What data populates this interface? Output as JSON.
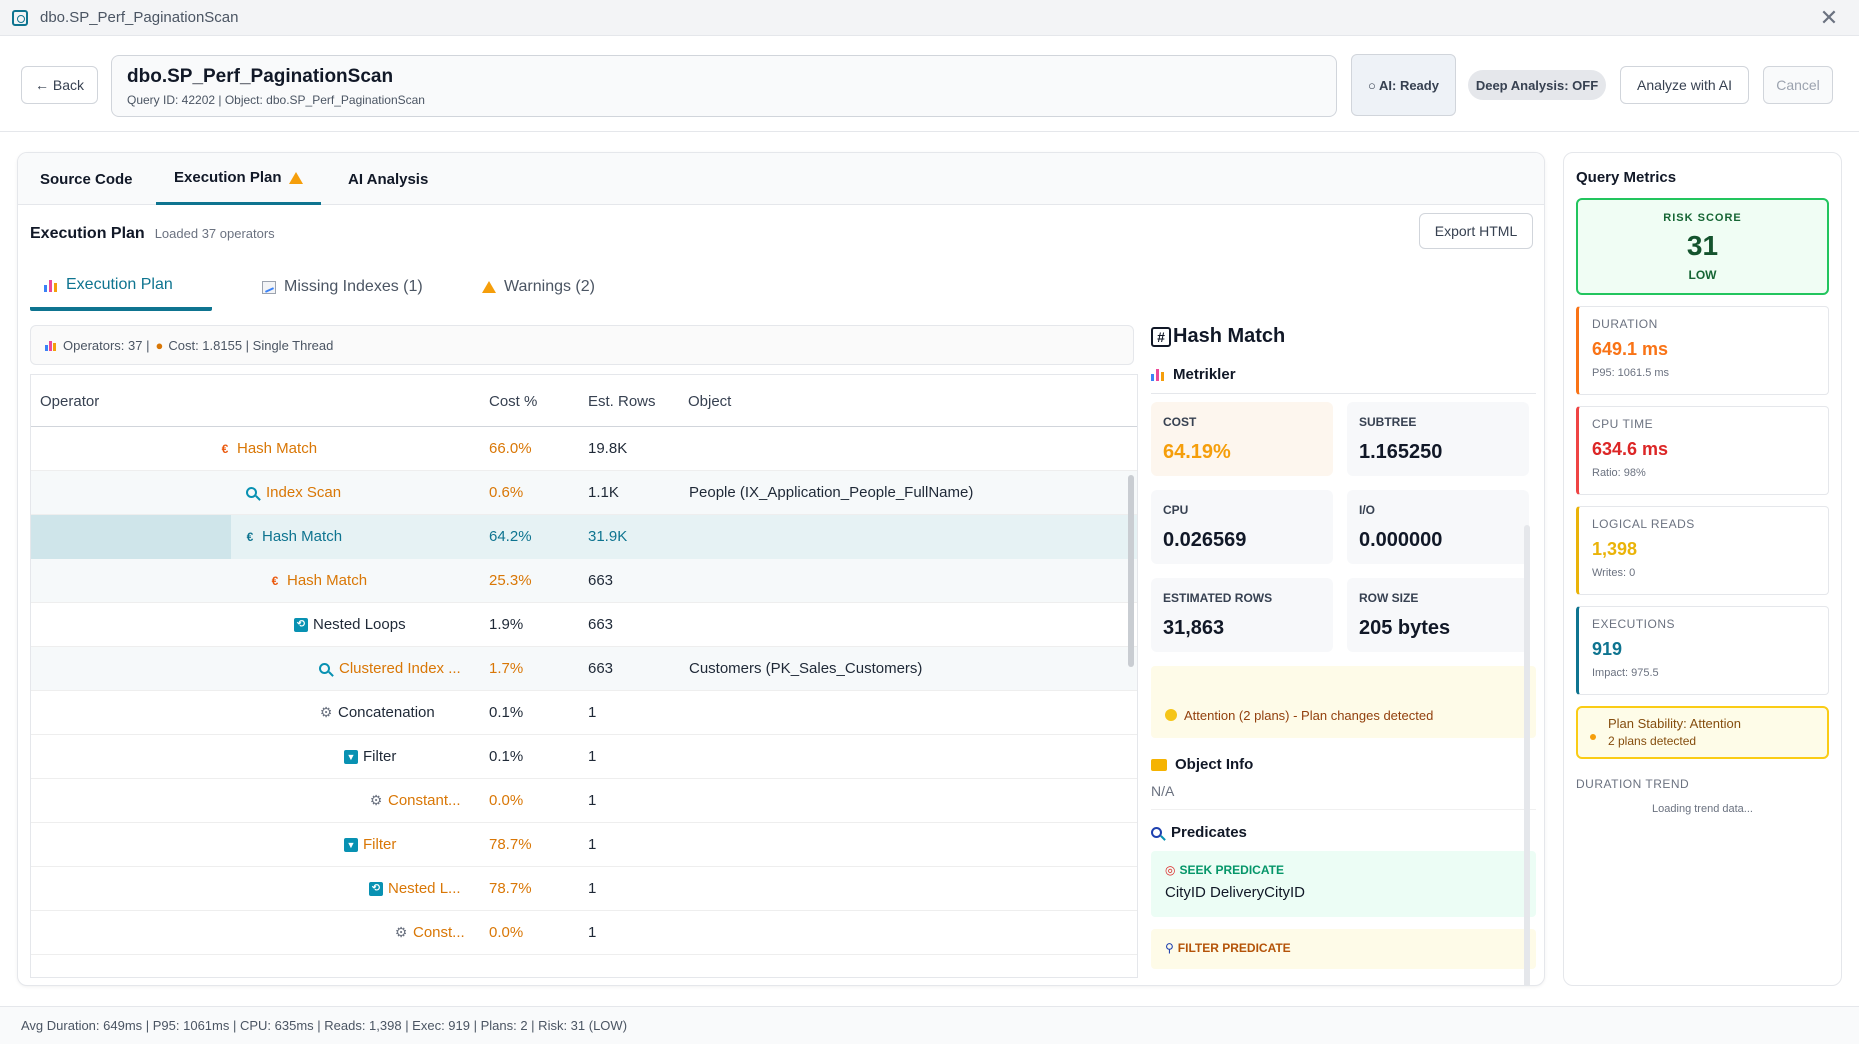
{
  "window": {
    "title": "dbo.SP_Perf_PaginationScan"
  },
  "header": {
    "back_label": "← Back",
    "query_title": "dbo.SP_Perf_PaginationScan",
    "query_sub": "Query ID: 42202 | Object: dbo.SP_Perf_PaginationScan",
    "ai_status": "○ AI: Ready",
    "deep_analysis": "Deep Analysis: OFF",
    "analyze_label": "Analyze with AI",
    "cancel_label": "Cancel"
  },
  "tabs": [
    {
      "label": "Source Code"
    },
    {
      "label": "Execution Plan"
    },
    {
      "label": "AI Analysis"
    }
  ],
  "plan": {
    "title": "Execution Plan",
    "loaded": "Loaded 37 operators",
    "export_label": "Export HTML",
    "subtabs": [
      {
        "label": "Execution Plan"
      },
      {
        "label": "Missing Indexes (1)"
      },
      {
        "label": "Warnings (2)"
      }
    ],
    "ops_summary": "Operators: 37 | ",
    "cost_summary": "Cost: 1.8155 | Single Thread",
    "columns": {
      "operator": "Operator",
      "cost": "Cost %",
      "rows": "Est. Rows",
      "object": "Object"
    },
    "rows": [
      {
        "name": "Hash Match",
        "icon": "hash-icon",
        "cost": "66.0%",
        "est_rows": "19.8K",
        "object": ""
      },
      {
        "name": "Index Scan",
        "icon": "search-icon",
        "cost": "0.6%",
        "est_rows": "1.1K",
        "object": "People (IX_Application_People_FullName)"
      },
      {
        "name": "Hash Match",
        "icon": "hash-icon",
        "cost": "64.2%",
        "est_rows": "31.9K",
        "object": ""
      },
      {
        "name": "Hash Match",
        "icon": "hash-icon",
        "cost": "25.3%",
        "est_rows": "663",
        "object": ""
      },
      {
        "name": "Nested Loops",
        "icon": "loop-icon",
        "cost": "1.9%",
        "est_rows": "663",
        "object": ""
      },
      {
        "name": "Clustered Index ...",
        "icon": "search-icon",
        "cost": "1.7%",
        "est_rows": "663",
        "object": "Customers (PK_Sales_Customers)"
      },
      {
        "name": "Concatenation",
        "icon": "gear-icon",
        "cost": "0.1%",
        "est_rows": "1",
        "object": ""
      },
      {
        "name": "Filter",
        "icon": "filter-icon",
        "cost": "0.1%",
        "est_rows": "1",
        "object": ""
      },
      {
        "name": "Constant...",
        "icon": "gear-icon",
        "cost": "0.0%",
        "est_rows": "1",
        "object": ""
      },
      {
        "name": "Filter",
        "icon": "filter-icon",
        "cost": "78.7%",
        "est_rows": "1",
        "object": ""
      },
      {
        "name": "Nested L...",
        "icon": "loop-icon",
        "cost": "78.7%",
        "est_rows": "1",
        "object": ""
      },
      {
        "name": "Const...",
        "icon": "gear-icon",
        "cost": "0.0%",
        "est_rows": "1",
        "object": ""
      }
    ]
  },
  "details": {
    "title": "Hash Match",
    "metrics_title": "Metrikler",
    "cost_label": "COST",
    "cost_value": "64.19%",
    "subtree_label": "SUBTREE",
    "subtree_value": "1.165250",
    "cpu_label": "CPU",
    "cpu_value": "0.026569",
    "io_label": "I/O",
    "io_value": "0.000000",
    "est_rows_label": "ESTIMATED ROWS",
    "est_rows_value": "31,863",
    "row_size_label": "ROW SIZE",
    "row_size_value": "205 bytes",
    "attention": "Attention (2 plans) - Plan changes detected",
    "object_info_title": "Object Info",
    "object_info_value": "N/A",
    "predicates_title": "Predicates",
    "seek_label": "SEEK PREDICATE",
    "seek_value": "CityID DeliveryCityID",
    "filter_label": "FILTER PREDICATE"
  },
  "side": {
    "title": "Query Metrics",
    "risk_label": "RISK SCORE",
    "risk_value": "31",
    "risk_level": "LOW",
    "duration_label": "DURATION",
    "duration_value": "649.1 ms",
    "duration_sub": "P95: 1061.5 ms",
    "cpu_label": "CPU TIME",
    "cpu_value": "634.6 ms",
    "cpu_sub": "Ratio: 98%",
    "reads_label": "LOGICAL READS",
    "reads_value": "1,398",
    "reads_sub": "Writes: 0",
    "exec_label": "EXECUTIONS",
    "exec_value": "919",
    "exec_sub": "Impact: 975.5",
    "stability_title": "Plan Stability: Attention",
    "stability_sub": "2 plans detected",
    "trend_label": "DURATION TREND",
    "trend_loading": "Loading trend data..."
  },
  "status": {
    "text": "Avg Duration: 649ms | P95: 1061ms | CPU: 635ms | Reads: 1,398 | Exec: 919 | Plans: 2 | Risk: 31 (LOW)"
  },
  "colors": {
    "accent": "#0e7490",
    "orange": "#d97706",
    "risk_green": "#22c55e"
  }
}
